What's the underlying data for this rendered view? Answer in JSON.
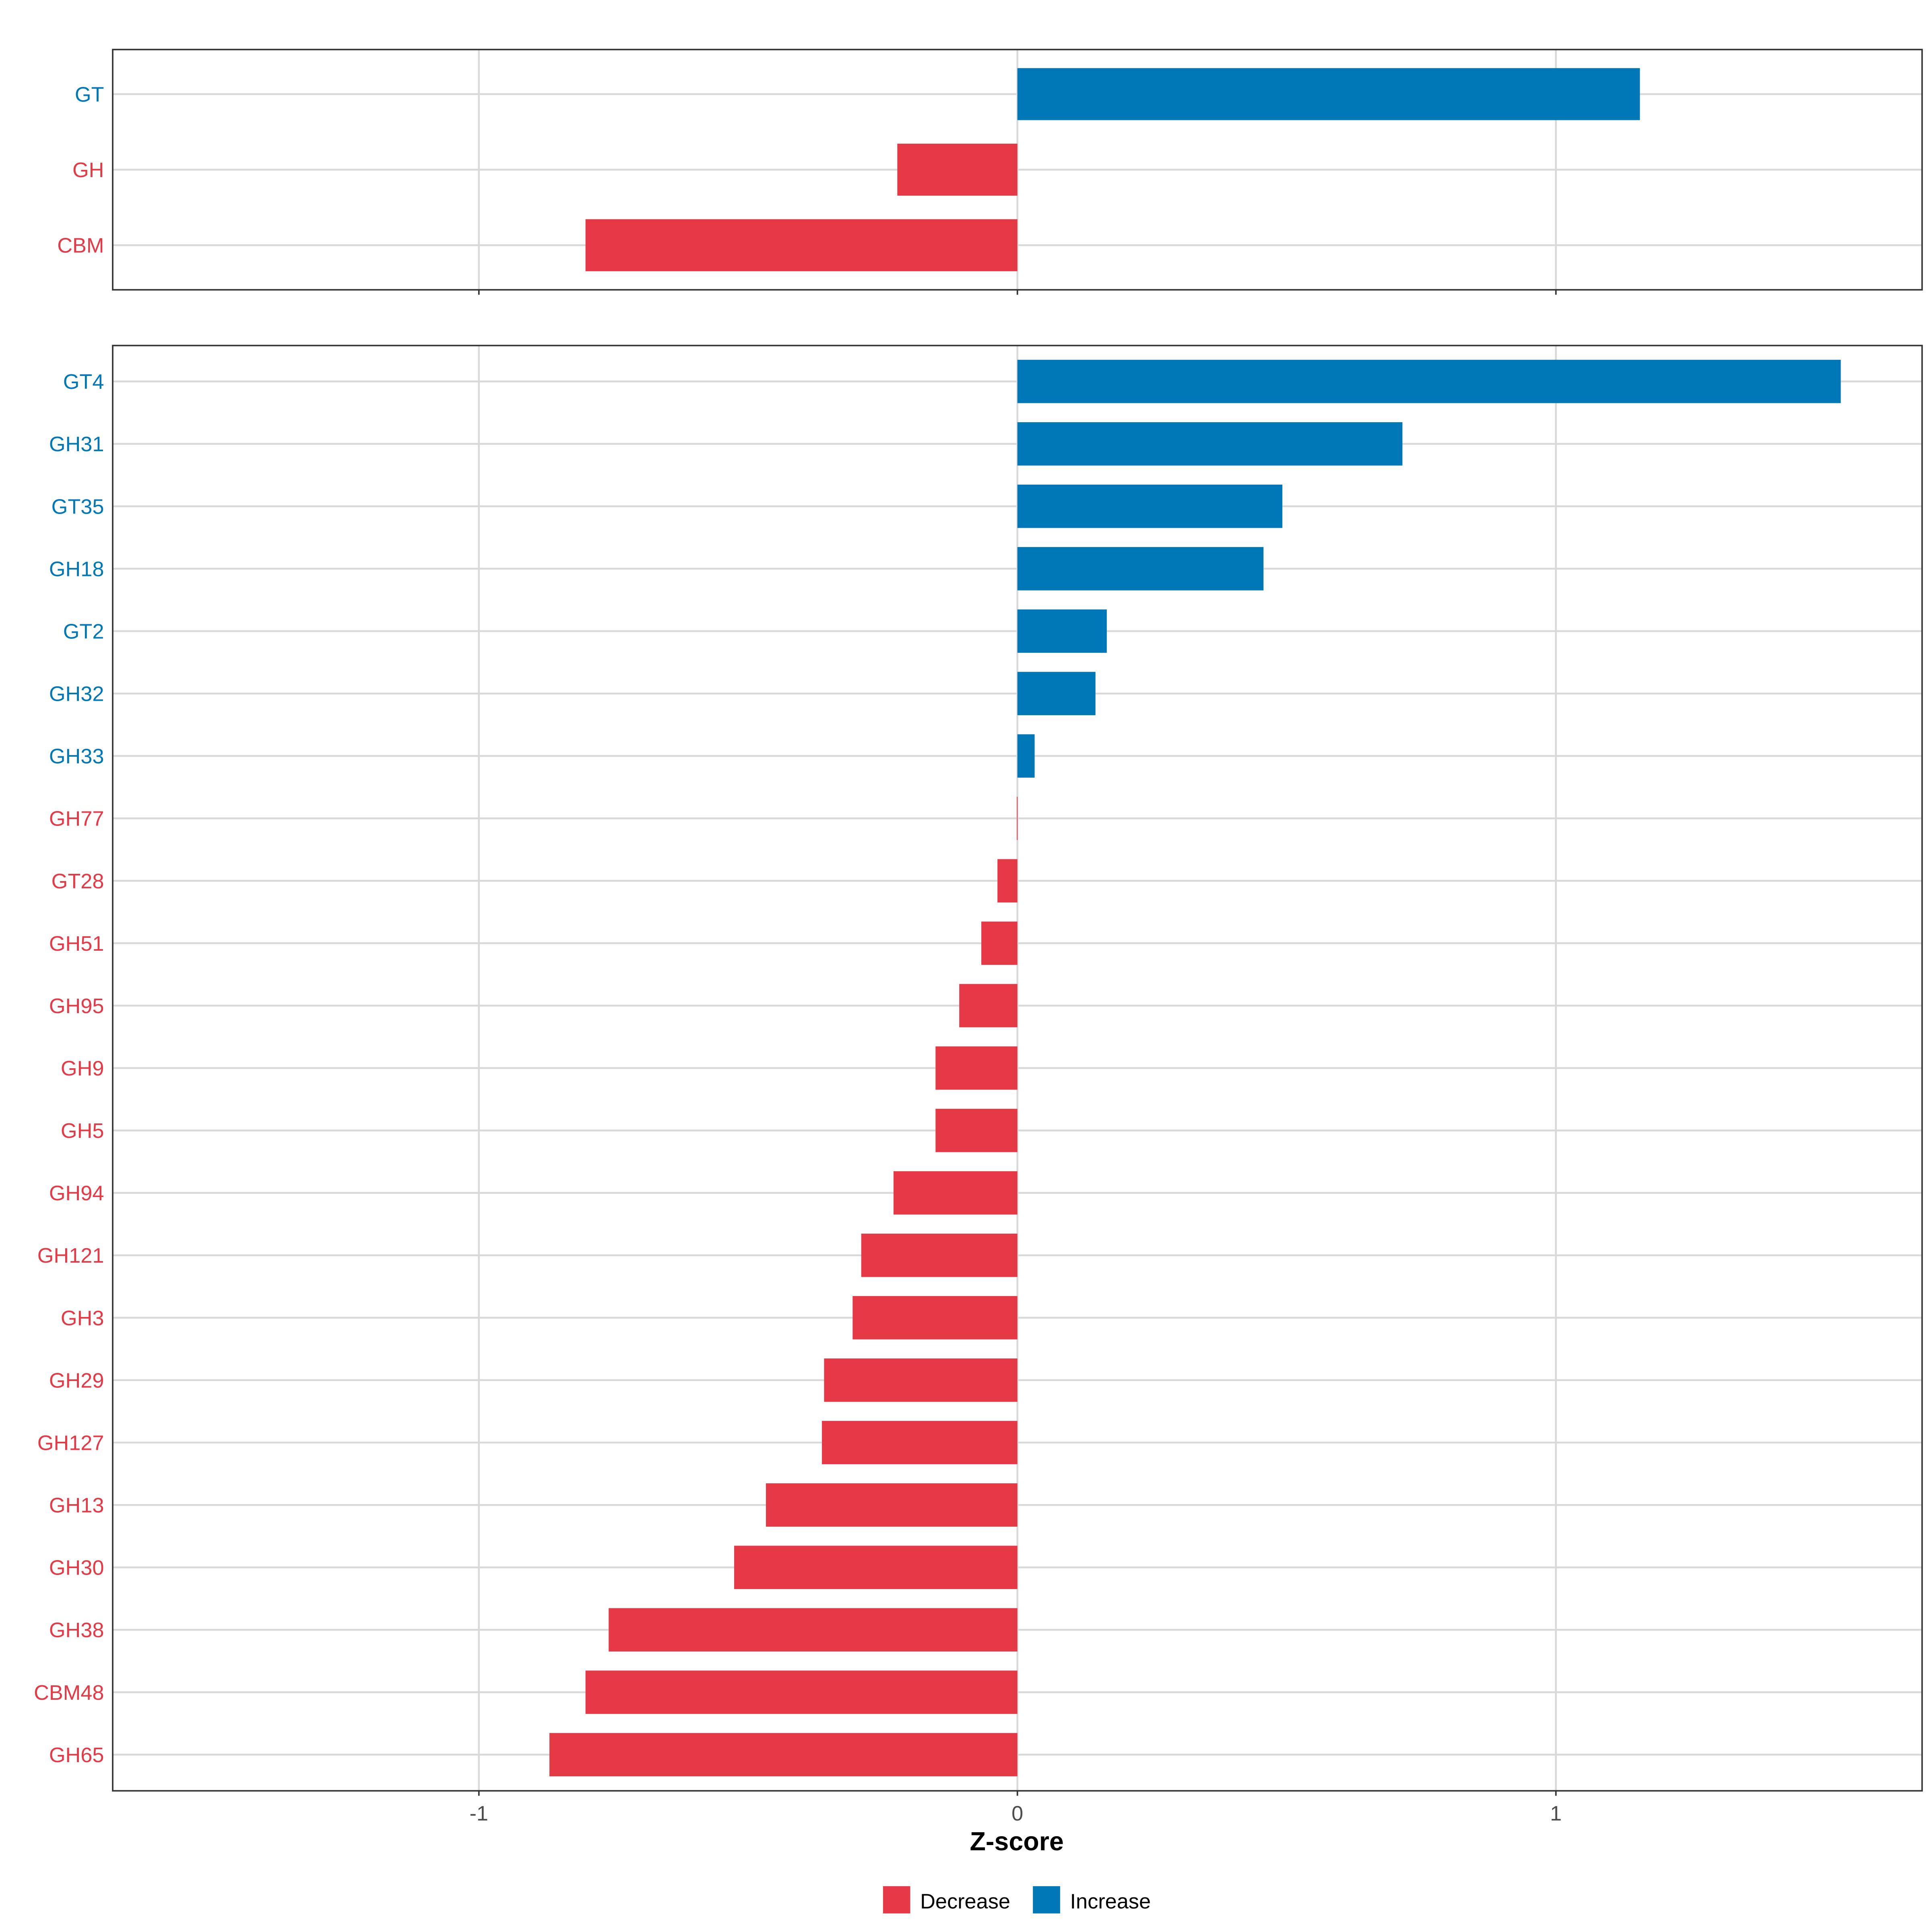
{
  "chart_data": [
    {
      "type": "bar",
      "orientation": "horizontal",
      "panel": "top",
      "categories": [
        "GT",
        "GH",
        "CBM"
      ],
      "values": [
        1.156,
        -0.223,
        -0.802
      ],
      "xlim": [
        -1.68,
        1.68
      ],
      "grid": true
    },
    {
      "type": "bar",
      "orientation": "horizontal",
      "panel": "bottom",
      "categories": [
        "GT4",
        "GH31",
        "GT35",
        "GH18",
        "GT2",
        "GH32",
        "GH33",
        "GH77",
        "GT28",
        "GH51",
        "GH95",
        "GH9",
        "GH5",
        "GH94",
        "GH121",
        "GH3",
        "GH29",
        "GH127",
        "GH13",
        "GH30",
        "GH38",
        "CBM48",
        "GH65"
      ],
      "values": [
        1.529,
        0.715,
        0.492,
        0.457,
        0.166,
        0.145,
        0.032,
        -0.001,
        -0.037,
        -0.067,
        -0.108,
        -0.152,
        -0.152,
        -0.23,
        -0.29,
        -0.306,
        -0.359,
        -0.363,
        -0.467,
        -0.526,
        -0.759,
        -0.802,
        -0.869
      ],
      "xlim": [
        -1.68,
        1.68
      ],
      "grid": true
    }
  ],
  "axis": {
    "xlabel": "Z-score",
    "xticks": [
      -1,
      0,
      1
    ],
    "xtick_labels": [
      "-1",
      "0",
      "1"
    ]
  },
  "legend": {
    "placement": "bottom",
    "entries": [
      {
        "label": "Decrease",
        "color": "#E63946"
      },
      {
        "label": "Increase",
        "color": "#0077B6"
      }
    ]
  }
}
